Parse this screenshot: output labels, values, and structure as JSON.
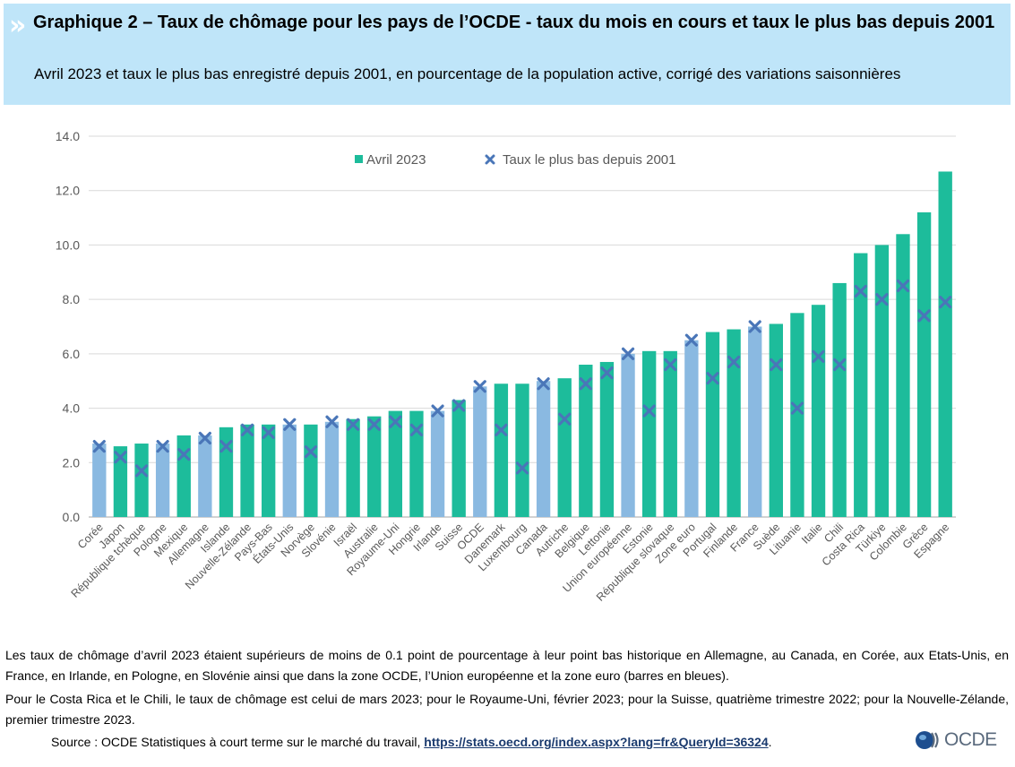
{
  "header": {
    "title": "Graphique 2 – Taux de chômage pour les pays de l’OCDE - taux du mois en cours et taux le plus bas depuis 2001",
    "subtitle": "Avril 2023 et taux le plus bas enregistré depuis 2001, en pourcentage de la population active, corrigé des variations saisonnières"
  },
  "chart_data": {
    "type": "bar",
    "categories": [
      "Corée",
      "Japon",
      "République tchèque",
      "Pologne",
      "Mexique",
      "Allemagne",
      "Islande",
      "Nouvelle-Zélande",
      "Pays-Bas",
      "États-Unis",
      "Norvège",
      "Slovénie",
      "Israël",
      "Australie",
      "Royaume-Uni",
      "Hongrie",
      "Irlande",
      "Suisse",
      "OCDE",
      "Danemark",
      "Luxembourg",
      "Canada",
      "Autriche",
      "Belgique",
      "Lettonie",
      "Union européenne",
      "Estonie",
      "République slovaque",
      "Zone euro",
      "Portugal",
      "Finlande",
      "France",
      "Suède",
      "Lituanie",
      "Italie",
      "Chili",
      "Costa Rica",
      "Türkiye",
      "Colombie",
      "Grèce",
      "Espagne"
    ],
    "series": [
      {
        "name": "Avril 2023",
        "type": "bar",
        "values": [
          2.7,
          2.6,
          2.7,
          2.7,
          3.0,
          3.0,
          3.3,
          3.4,
          3.4,
          3.4,
          3.4,
          3.5,
          3.6,
          3.7,
          3.9,
          3.9,
          3.9,
          4.3,
          4.8,
          4.9,
          4.9,
          5.0,
          5.1,
          5.6,
          5.7,
          6.0,
          6.1,
          6.1,
          6.5,
          6.8,
          6.9,
          7.0,
          7.1,
          7.5,
          7.8,
          8.6,
          9.7,
          10.0,
          10.4,
          11.2,
          12.7
        ]
      },
      {
        "name": "Taux le plus bas depuis 2001",
        "type": "scatter",
        "values": [
          2.6,
          2.2,
          1.7,
          2.6,
          2.3,
          2.9,
          2.6,
          3.2,
          3.1,
          3.4,
          2.4,
          3.5,
          3.4,
          3.4,
          3.5,
          3.2,
          3.9,
          4.1,
          4.8,
          3.2,
          1.8,
          4.9,
          3.6,
          4.9,
          5.3,
          6.0,
          3.9,
          5.6,
          6.5,
          5.1,
          5.7,
          7.0,
          5.6,
          4.0,
          5.9,
          5.6,
          8.3,
          8.0,
          8.5,
          7.4,
          7.9
        ]
      }
    ],
    "highlighted": [
      true,
      false,
      false,
      true,
      false,
      true,
      false,
      false,
      false,
      true,
      false,
      true,
      false,
      false,
      false,
      false,
      true,
      false,
      true,
      false,
      false,
      true,
      false,
      false,
      false,
      true,
      false,
      false,
      true,
      false,
      false,
      true,
      false,
      false,
      false,
      false,
      false,
      false,
      false,
      false,
      false
    ],
    "ylim": [
      0,
      14
    ],
    "yticks": [
      "0.0",
      "2.0",
      "4.0",
      "6.0",
      "8.0",
      "10.0",
      "12.0",
      "14.0"
    ],
    "grid": true,
    "legend_position": "top",
    "colors": {
      "bar": "#1dbc9b",
      "bar_highlight": "#8ab9e1",
      "marker": "#4a76b8",
      "grid": "#d9d9d9",
      "axis": "#a6a6a6",
      "text": "#595959"
    }
  },
  "notes": [
    "Les taux de chômage d’avril 2023 étaient supérieurs de moins de 0.1 point de pourcentage à leur point bas historique en Allemagne, au Canada, en Corée, aux Etats-Unis, en France, en Irlande, en Pologne, en Slovénie ainsi que dans la zone OCDE, l’Union européenne et la zone euro (barres en bleues).",
    "Pour le Costa Rica et le Chili, le taux de chômage est celui de mars 2023; pour le Royaume-Uni, février 2023; pour la Suisse, quatrième trimestre 2022; pour la Nouvelle-Zélande, premier trimestre 2023."
  ],
  "source": {
    "prefix": "Source : OCDE Statistiques à court terme sur le marché du travail, ",
    "link": "https://stats.oecd.org/index.aspx?lang=fr&QueryId=36324",
    "suffix": "."
  },
  "logo": {
    "text": "OCDE",
    "icon": "oecd-globe-icon"
  }
}
